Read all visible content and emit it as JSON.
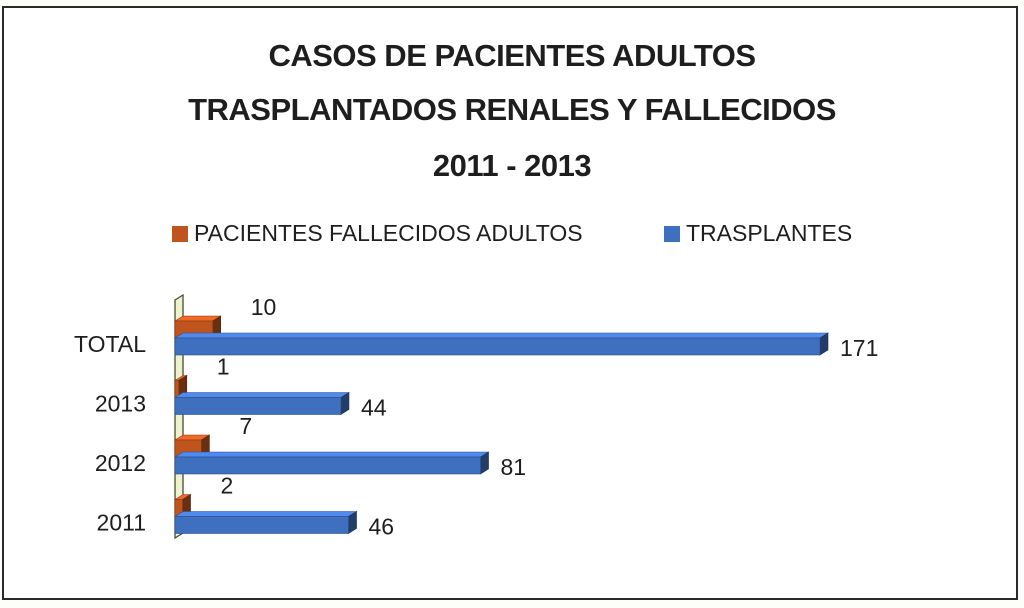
{
  "chart_data": {
    "type": "bar",
    "orientation": "horizontal",
    "style": "3d",
    "title_lines": [
      "CASOS DE PACIENTES ADULTOS",
      "TRASPLANTADOS RENALES  Y FALLECIDOS",
      "2011 - 2013"
    ],
    "categories": [
      "TOTAL",
      "2013",
      "2012",
      "2011"
    ],
    "series": [
      {
        "name": "PACIENTES FALLECIDOS ADULTOS",
        "color": "#c0541f",
        "values": [
          10,
          1,
          7,
          2
        ]
      },
      {
        "name": "TRASPLANTES",
        "color": "#3f6fbf",
        "values": [
          171,
          44,
          81,
          46
        ]
      }
    ],
    "xlim": [
      0,
      171
    ],
    "grid": false,
    "legend_position": "top"
  }
}
